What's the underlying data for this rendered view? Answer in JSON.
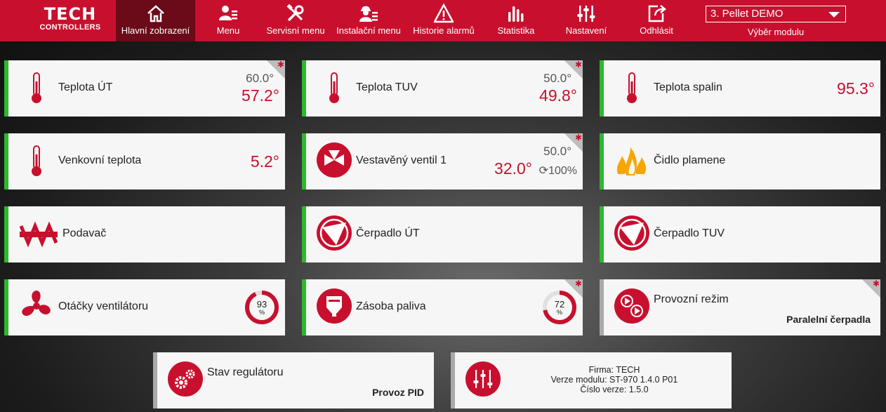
{
  "logo": {
    "line1": "TECH",
    "line2": "CONTROLLERS"
  },
  "nav": {
    "items": [
      {
        "label": "Hlavní zobrazení",
        "icon": "home-icon",
        "active": true
      },
      {
        "label": "Menu",
        "icon": "user-menu-icon"
      },
      {
        "label": "Servisní menu",
        "icon": "tools-icon"
      },
      {
        "label": "Instalační menu",
        "icon": "installer-icon"
      },
      {
        "label": "Historie alarmů",
        "icon": "warning-icon"
      },
      {
        "label": "Statistika",
        "icon": "bar-chart-icon"
      },
      {
        "label": "Nastavení",
        "icon": "sliders-icon"
      },
      {
        "label": "Odhlásit",
        "icon": "logout-icon"
      }
    ],
    "module_select": {
      "value": "3. Pellet DEMO",
      "label": "Výběr modulu"
    }
  },
  "tiles": {
    "teplota_ut": {
      "name": "Teplota ÚT",
      "set": "60.0°",
      "current": "57.2°"
    },
    "teplota_tuv": {
      "name": "Teplota TUV",
      "set": "50.0°",
      "current": "49.8°"
    },
    "teplota_spalin": {
      "name": "Teplota spalin",
      "current": "95.3°"
    },
    "venkovni": {
      "name": "Venkovní teplota",
      "current": "5.2°"
    },
    "ventil": {
      "name": "Vestavěný ventil 1",
      "set": "50.0°",
      "current": "32.0°",
      "opening": "100%"
    },
    "cidlo": {
      "name": "Čidlo plamene"
    },
    "podavac": {
      "name": "Podavač"
    },
    "cerpadlo_ut": {
      "name": "Čerpadlo ÚT"
    },
    "cerpadlo_tuv": {
      "name": "Čerpadlo TUV"
    },
    "ventilator": {
      "name": "Otáčky ventilátoru",
      "value": "93",
      "unit": "%",
      "fraction": 0.93
    },
    "zasoba": {
      "name": "Zásoba paliva",
      "value": "72",
      "unit": "%",
      "fraction": 0.72
    },
    "rezim": {
      "name": "Provozní režim",
      "value": "Paralelní čerpadla"
    },
    "stav": {
      "name": "Stav regulátoru",
      "value": "Provoz PID"
    },
    "info": {
      "line1": "Firma: TECH",
      "line2": "Verze modulu: ST-970 1.4.0 P01",
      "line3": "Číslo verze: 1.5.0"
    }
  },
  "colors": {
    "brand": "#c8102e",
    "status_on": "#2db82d",
    "status_off": "#a9a9a9"
  }
}
